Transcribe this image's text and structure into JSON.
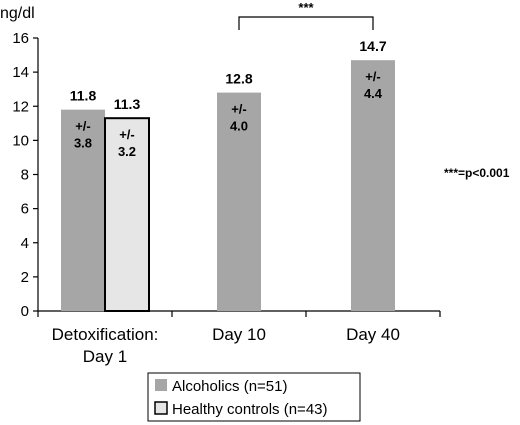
{
  "chart_data": {
    "type": "bar",
    "unit_label": "ng/dl",
    "ylim": [
      0,
      16
    ],
    "y_ticks": [
      0,
      2,
      4,
      6,
      8,
      10,
      12,
      14,
      16
    ],
    "groups": [
      {
        "label_lines": [
          "Detoxification:",
          "Day 1"
        ]
      },
      {
        "label_lines": [
          "Day 10"
        ]
      },
      {
        "label_lines": [
          "Day 40"
        ]
      }
    ],
    "series": [
      {
        "name": "Alcoholics (n=51)",
        "color": "#a6a6a6",
        "outlined": false,
        "values": [
          11.8,
          12.8,
          14.7
        ],
        "value_labels": [
          "11.8",
          "12.8",
          "14.7"
        ],
        "sd_labels": [
          [
            "+/-",
            "3.8"
          ],
          [
            "+/-",
            "4.0"
          ],
          [
            "+/-",
            "4.4"
          ]
        ]
      },
      {
        "name": "Healthy controls (n=43)",
        "color": "#e6e6e6",
        "outlined": true,
        "values": [
          11.3,
          null,
          null
        ],
        "value_labels": [
          "11.3",
          "",
          ""
        ],
        "sd_labels": [
          [
            "+/-",
            "3.2"
          ],
          [],
          []
        ]
      }
    ],
    "significance": {
      "between_groups": [
        1,
        2
      ],
      "label": "***"
    },
    "note": "***=p<0.001",
    "legend_position": "bottom-left",
    "grid": false
  }
}
